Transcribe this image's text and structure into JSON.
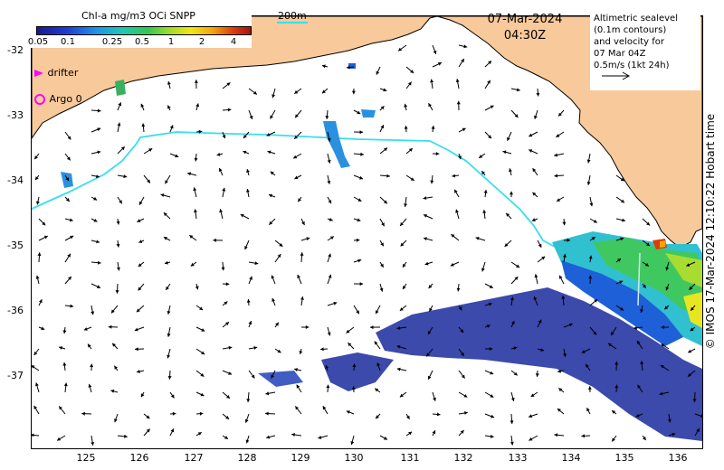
{
  "colorbar": {
    "title": "Chl-a mg/m3 OCi SNPP",
    "ticks": [
      "0.05",
      "0.1",
      "0.25",
      "0.5",
      "1",
      "2",
      "4"
    ]
  },
  "datetime": {
    "date": "07-Mar-2024",
    "time": "04:30Z"
  },
  "legend": {
    "lines": [
      "Altimetric sealevel",
      "(0.1m contours)",
      "and velocity for",
      "07 Mar 04Z",
      "0.5m/s (1kt 24h)"
    ]
  },
  "markers": {
    "drifter_label": "drifter",
    "argo_label": "Argo 0",
    "drifter_color": "#ff00ff",
    "argo_color": "#ff00ff"
  },
  "contour_label": "200m",
  "credit": "© IMOS 17-Mar-2024 12:10:22 Hobart time",
  "axes": {
    "lat_ticks": [
      "-32",
      "-33",
      "-34",
      "-35",
      "-36",
      "-37"
    ],
    "lon_ticks": [
      "125",
      "126",
      "127",
      "128",
      "129",
      "130",
      "131",
      "132",
      "133",
      "134",
      "135",
      "136"
    ],
    "lat_values": [
      -32,
      -33,
      -34,
      -35,
      -36,
      -37
    ],
    "lon_values": [
      125,
      126,
      127,
      128,
      129,
      130,
      131,
      132,
      133,
      134,
      135,
      136
    ],
    "lon_range": [
      124,
      136.5
    ],
    "lat_range": [
      -38.1,
      -31.6
    ]
  },
  "colors": {
    "land": "#f8c99a",
    "contour": "#33e0ee",
    "arrows": "#000000",
    "ocean": "#ffffff"
  }
}
